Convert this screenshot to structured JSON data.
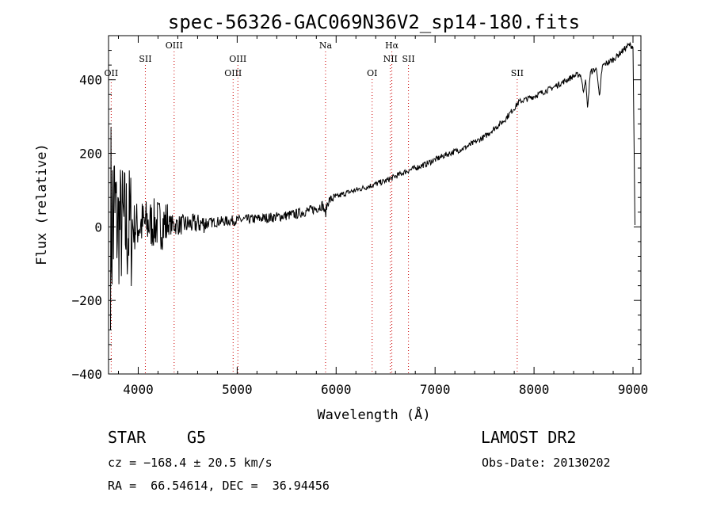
{
  "chart_data": {
    "type": "line",
    "title": "spec-56326-GAC069N36V2_sp14-180.fits",
    "xlabel": "Wavelength (Å)",
    "ylabel": "Flux (relative)",
    "xlim": [
      3700,
      9080
    ],
    "ylim": [
      -400,
      520
    ],
    "xticks": [
      4000,
      5000,
      6000,
      7000,
      8000,
      9000
    ],
    "yticks": [
      -400,
      -200,
      0,
      200,
      400
    ],
    "grid": false,
    "line_color": "#000000",
    "marker_color": "#cc0000",
    "continuum": [
      [
        3720,
        20
      ],
      [
        3800,
        5
      ],
      [
        3900,
        -5
      ],
      [
        4000,
        5
      ],
      [
        4100,
        8
      ],
      [
        4200,
        8
      ],
      [
        4400,
        5
      ],
      [
        4600,
        8
      ],
      [
        4800,
        14
      ],
      [
        5000,
        18
      ],
      [
        5200,
        22
      ],
      [
        5400,
        27
      ],
      [
        5600,
        35
      ],
      [
        5800,
        50
      ],
      [
        5950,
        75
      ],
      [
        6100,
        92
      ],
      [
        6300,
        108
      ],
      [
        6500,
        125
      ],
      [
        6700,
        150
      ],
      [
        6900,
        170
      ],
      [
        7100,
        195
      ],
      [
        7300,
        215
      ],
      [
        7500,
        245
      ],
      [
        7700,
        290
      ],
      [
        7850,
        340
      ],
      [
        8000,
        355
      ],
      [
        8200,
        380
      ],
      [
        8400,
        410
      ],
      [
        8600,
        425
      ],
      [
        8800,
        455
      ],
      [
        8960,
        495
      ],
      [
        9000,
        490
      ]
    ],
    "absorption_features": [
      {
        "x": 5890,
        "depth": 28
      },
      {
        "x": 8498,
        "depth": 45
      },
      {
        "x": 8542,
        "depth": 90
      },
      {
        "x": 8662,
        "depth": 80
      }
    ],
    "end_drop": {
      "x": 9020,
      "y": 5
    },
    "noise": [
      {
        "from": 3700,
        "to": 3780,
        "amplitude": 300
      },
      {
        "from": 3780,
        "to": 3950,
        "amplitude": 180
      },
      {
        "from": 3950,
        "to": 4300,
        "amplitude": 70
      },
      {
        "from": 4300,
        "to": 4700,
        "amplitude": 28
      },
      {
        "from": 4700,
        "to": 6000,
        "amplitude": 14
      },
      {
        "from": 6000,
        "to": 9000,
        "amplitude": 8
      }
    ],
    "lines": [
      {
        "label": "OII",
        "x": 3727,
        "row": 3
      },
      {
        "label": "SII",
        "x": 4072,
        "row": 2
      },
      {
        "label": "OIII",
        "x": 4363,
        "row": 1
      },
      {
        "label": "OIII",
        "x": 4959,
        "row": 3
      },
      {
        "label": "OIII",
        "x": 5007,
        "row": 2
      },
      {
        "label": "Na",
        "x": 5893,
        "row": 1
      },
      {
        "label": "OI",
        "x": 6364,
        "row": 3
      },
      {
        "label": "Hα",
        "x": 6563,
        "row": 1
      },
      {
        "label": "NII",
        "x": 6548,
        "row": 2
      },
      {
        "label": "SII",
        "x": 6731,
        "row": 2
      },
      {
        "label": "SII",
        "x": 7830,
        "row": 3
      }
    ]
  },
  "info": {
    "object_type": "STAR",
    "subclass": "G5",
    "survey": "LAMOST DR2",
    "cz": "cz = −168.4 ± 20.5 km/s",
    "obs_date": "Obs-Date: 20130202",
    "coords": "RA =  66.54614, DEC =  36.94456"
  }
}
